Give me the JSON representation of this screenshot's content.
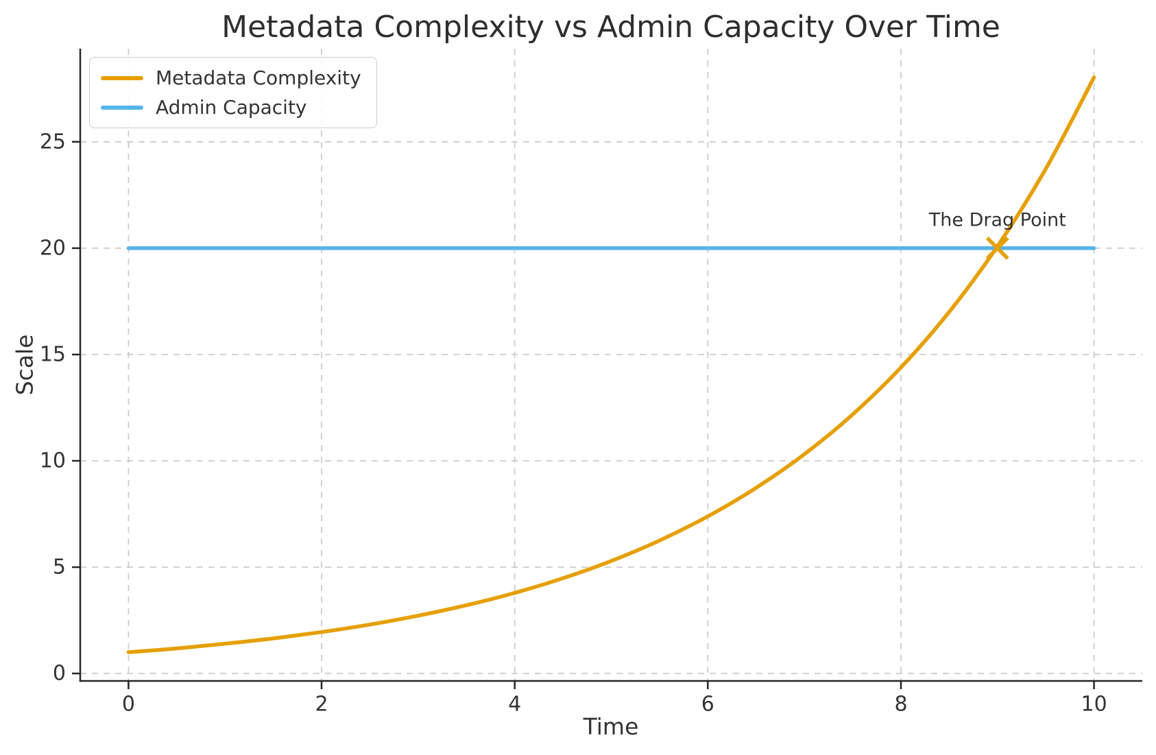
{
  "chart_data": {
    "type": "line",
    "title": "Metadata Complexity vs Admin Capacity Over Time",
    "xlabel": "Time",
    "ylabel": "Scale",
    "xlim": [
      -0.5,
      10.5
    ],
    "ylim": [
      -0.35,
      29.38
    ],
    "xticks": [
      0,
      2,
      4,
      6,
      8,
      10
    ],
    "yticks": [
      0,
      5,
      10,
      15,
      20,
      25
    ],
    "grid": true,
    "grid_style": "dashed",
    "legend_position": "upper left",
    "series": [
      {
        "name": "Metadata Complexity",
        "color": "#E69F00",
        "x": [
          0,
          0.5,
          1,
          1.5,
          2,
          2.5,
          3,
          3.5,
          4,
          4.5,
          5,
          5.5,
          6,
          6.5,
          7,
          7.5,
          8,
          8.5,
          9,
          9.5,
          10
        ],
        "y": [
          1.0,
          1.18,
          1.4,
          1.65,
          1.95,
          2.3,
          2.72,
          3.21,
          3.79,
          4.48,
          5.29,
          6.25,
          7.39,
          8.73,
          10.31,
          12.18,
          14.39,
          17.0,
          20.09,
          23.73,
          28.03
        ]
      },
      {
        "name": "Admin Capacity",
        "color": "#56B4E9",
        "x": [
          0,
          10
        ],
        "y": [
          20,
          20
        ]
      }
    ],
    "annotation": {
      "text": "The Drag Point",
      "x": 9,
      "y": 20,
      "marker": "x",
      "marker_color": "#E69F00",
      "text_color": "#333333"
    }
  },
  "colors": {
    "text": "#333333",
    "spine": "#262626",
    "grid": "#cccccc",
    "background": "#ffffff"
  }
}
